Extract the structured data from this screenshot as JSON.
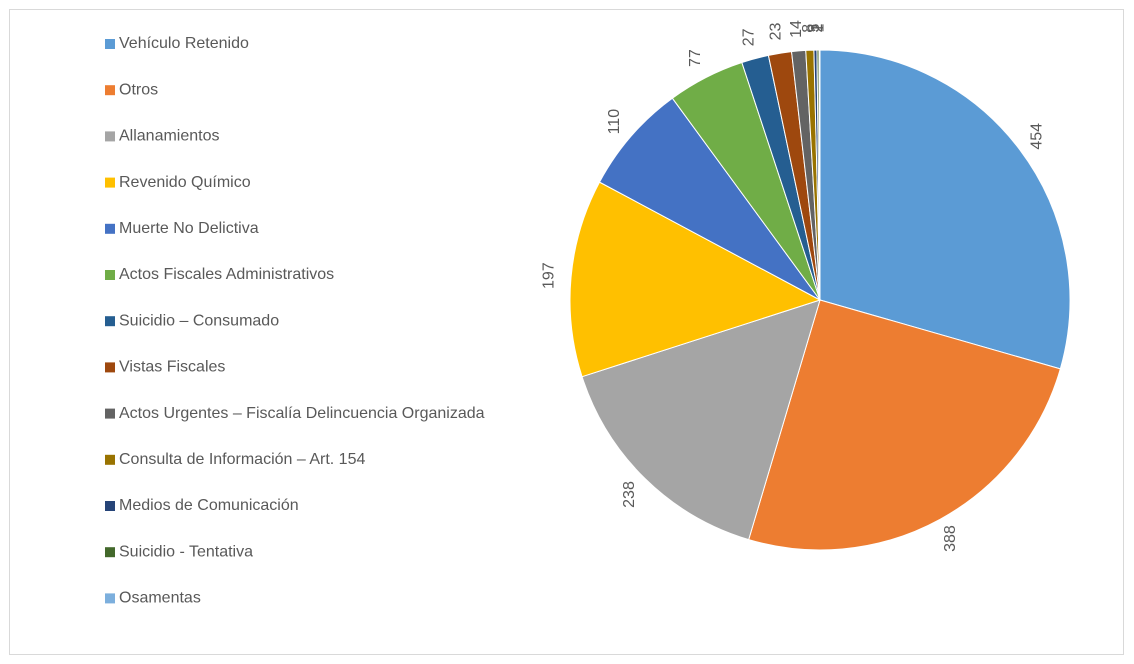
{
  "chart_data": {
    "type": "pie",
    "categories": [
      "Vehículo Retenido",
      "Otros",
      "Allanamientos",
      "Revenido Químico",
      "Muerte No Delictiva",
      "Actos Fiscales Administrativos",
      "Suicidio – Consumado",
      "Vistas Fiscales",
      "Actos Urgentes – Fiscalía Delincuencia Organizada",
      "Consulta de Información – Art. 154",
      "Medios de Comunicación",
      "Suicidio - Tentativa",
      "Osamentas"
    ],
    "values": [
      454,
      388,
      238,
      197,
      110,
      77,
      27,
      23,
      14,
      8,
      3,
      2,
      1
    ],
    "colors": [
      "#5b9bd5",
      "#ed7d31",
      "#a5a5a5",
      "#ffc000",
      "#4472c4",
      "#70ad47",
      "#255e91",
      "#9e480e",
      "#636363",
      "#997300",
      "#264478",
      "#43682b",
      "#7cafdd"
    ],
    "legend": "left"
  }
}
